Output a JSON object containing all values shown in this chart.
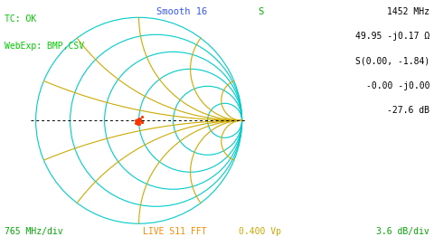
{
  "bg_color": "#ffffff",
  "smith_color": "#00cccc",
  "reactance_color": "#ccaa00",
  "trace_color": "#ff3300",
  "dashed_color": "#000000",
  "title_smooth": "Smooth 16",
  "title_s": "S",
  "top_left_line1": "TC: OK",
  "top_left_line2": "WebExp: BMP,CSV",
  "tc_ok_color": "#00cc00",
  "webexp_color": "#00cc00",
  "top_right_line1": "1452 MHz",
  "top_right_line2": "49.95 -j0.17 Ω",
  "top_right_line3": "S(0.00, -1.84)",
  "top_right_line4": "-0.00 -j0.00",
  "top_right_line5": "-27.6 dB",
  "top_right_color": "#000000",
  "bottom_left": "765 MHz/div",
  "bottom_left_color": "#00aa00",
  "bottom_center_orange": "LIVE S11 FFT",
  "bottom_center_white": "0.400 Vp",
  "bottom_center_orange_color": "#ff8800",
  "bottom_center_white_color": "#ccaa00",
  "bottom_right": "3.6 dB/div",
  "bottom_right_color": "#00aa00",
  "resistance_circles": [
    0.0,
    0.2,
    0.5,
    1.0,
    2.0,
    5.0
  ],
  "reactance_arcs": [
    0.2,
    0.5,
    1.0,
    2.0,
    5.0
  ],
  "smith_lw": 0.8
}
